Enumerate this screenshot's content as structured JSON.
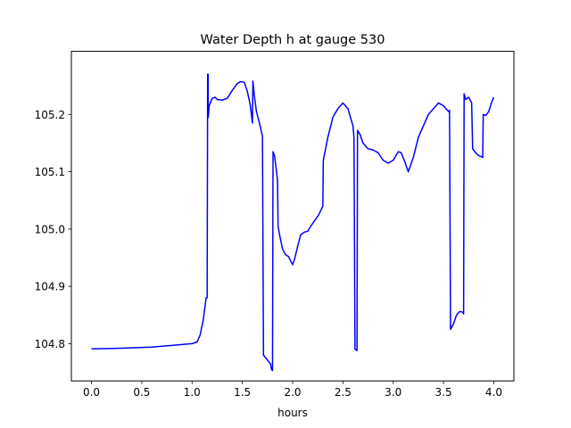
{
  "chart_data": {
    "type": "line",
    "title": "Water Depth h at gauge 530",
    "xlabel": "hours",
    "ylabel": "",
    "xlim": [
      -0.2,
      4.2
    ],
    "ylim": [
      104.735,
      105.31
    ],
    "x_ticks": [
      0.0,
      0.5,
      1.0,
      1.5,
      2.0,
      2.5,
      3.0,
      3.5,
      4.0
    ],
    "x_tick_labels": [
      "0.0",
      "0.5",
      "1.0",
      "1.5",
      "2.0",
      "2.5",
      "3.0",
      "3.5",
      "4.0"
    ],
    "y_ticks": [
      104.8,
      104.9,
      105.0,
      105.1,
      105.2
    ],
    "y_tick_labels": [
      "104.8",
      "104.9",
      "105.0",
      "105.1",
      "105.2"
    ],
    "grid": false,
    "legend": "none",
    "series": [
      {
        "color": "#0000ff",
        "points": [
          [
            0.0,
            104.791
          ],
          [
            0.3,
            104.792
          ],
          [
            0.6,
            104.794
          ],
          [
            0.8,
            104.797
          ],
          [
            1.0,
            104.8
          ],
          [
            1.05,
            104.803
          ],
          [
            1.08,
            104.815
          ],
          [
            1.11,
            104.84
          ],
          [
            1.14,
            104.88
          ],
          [
            1.15,
            104.88
          ],
          [
            1.155,
            105.27
          ],
          [
            1.16,
            105.27
          ],
          [
            1.161,
            105.195
          ],
          [
            1.17,
            105.215
          ],
          [
            1.2,
            105.228
          ],
          [
            1.23,
            105.23
          ],
          [
            1.25,
            105.226
          ],
          [
            1.3,
            105.225
          ],
          [
            1.35,
            105.228
          ],
          [
            1.4,
            105.242
          ],
          [
            1.45,
            105.254
          ],
          [
            1.48,
            105.257
          ],
          [
            1.52,
            105.256
          ],
          [
            1.55,
            105.24
          ],
          [
            1.58,
            105.215
          ],
          [
            1.6,
            105.185
          ],
          [
            1.605,
            105.258
          ],
          [
            1.62,
            105.232
          ],
          [
            1.64,
            105.205
          ],
          [
            1.67,
            105.185
          ],
          [
            1.7,
            105.162
          ],
          [
            1.71,
            104.78
          ],
          [
            1.78,
            104.765
          ],
          [
            1.79,
            104.755
          ],
          [
            1.8,
            104.753
          ],
          [
            1.805,
            105.135
          ],
          [
            1.82,
            105.128
          ],
          [
            1.84,
            105.1
          ],
          [
            1.85,
            105.085
          ],
          [
            1.855,
            105.005
          ],
          [
            1.87,
            104.99
          ],
          [
            1.9,
            104.965
          ],
          [
            1.93,
            104.955
          ],
          [
            1.96,
            104.952
          ],
          [
            1.98,
            104.944
          ],
          [
            2.0,
            104.938
          ],
          [
            2.02,
            104.948
          ],
          [
            2.05,
            104.97
          ],
          [
            2.08,
            104.99
          ],
          [
            2.12,
            104.995
          ],
          [
            2.15,
            104.996
          ],
          [
            2.18,
            105.005
          ],
          [
            2.22,
            105.015
          ],
          [
            2.26,
            105.025
          ],
          [
            2.3,
            105.04
          ],
          [
            2.305,
            105.12
          ],
          [
            2.35,
            105.16
          ],
          [
            2.4,
            105.195
          ],
          [
            2.45,
            105.21
          ],
          [
            2.5,
            105.22
          ],
          [
            2.55,
            105.21
          ],
          [
            2.6,
            105.18
          ],
          [
            2.61,
            105.16
          ],
          [
            2.62,
            104.79
          ],
          [
            2.64,
            104.788
          ],
          [
            2.645,
            105.172
          ],
          [
            2.67,
            105.165
          ],
          [
            2.7,
            105.15
          ],
          [
            2.75,
            105.14
          ],
          [
            2.8,
            105.138
          ],
          [
            2.85,
            105.133
          ],
          [
            2.9,
            105.12
          ],
          [
            2.95,
            105.115
          ],
          [
            3.0,
            105.12
          ],
          [
            3.05,
            105.135
          ],
          [
            3.08,
            105.133
          ],
          [
            3.12,
            105.115
          ],
          [
            3.15,
            105.1
          ],
          [
            3.2,
            105.125
          ],
          [
            3.25,
            105.16
          ],
          [
            3.3,
            105.18
          ],
          [
            3.35,
            105.2
          ],
          [
            3.4,
            105.21
          ],
          [
            3.45,
            105.22
          ],
          [
            3.5,
            105.215
          ],
          [
            3.55,
            105.205
          ],
          [
            3.56,
            105.207
          ],
          [
            3.57,
            104.825
          ],
          [
            3.6,
            104.835
          ],
          [
            3.63,
            104.85
          ],
          [
            3.66,
            104.856
          ],
          [
            3.69,
            104.855
          ],
          [
            3.7,
            104.852
          ],
          [
            3.705,
            105.236
          ],
          [
            3.72,
            105.226
          ],
          [
            3.75,
            105.23
          ],
          [
            3.78,
            105.22
          ],
          [
            3.79,
            105.14
          ],
          [
            3.82,
            105.133
          ],
          [
            3.85,
            105.128
          ],
          [
            3.88,
            105.126
          ],
          [
            3.89,
            105.125
          ],
          [
            3.895,
            105.2
          ],
          [
            3.92,
            105.198
          ],
          [
            3.95,
            105.205
          ],
          [
            3.98,
            105.222
          ],
          [
            4.0,
            105.23
          ]
        ]
      }
    ]
  }
}
